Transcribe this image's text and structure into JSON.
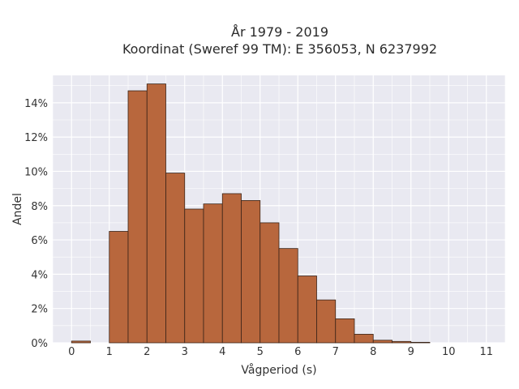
{
  "chart_data": {
    "type": "bar",
    "title_line1": "År 1979 - 2019",
    "title_line2": "Koordinat (Sweref 99 TM): E 356053, N 6237992",
    "xlabel": "Vågperiod (s)",
    "ylabel": "Andel",
    "bin_width": 0.5,
    "bins": [
      {
        "x0": 0.0,
        "x1": 0.5,
        "value": 0.1
      },
      {
        "x0": 0.5,
        "x1": 1.0,
        "value": 0.0
      },
      {
        "x0": 1.0,
        "x1": 1.5,
        "value": 6.5
      },
      {
        "x0": 1.5,
        "x1": 2.0,
        "value": 14.7
      },
      {
        "x0": 2.0,
        "x1": 2.5,
        "value": 15.1
      },
      {
        "x0": 2.5,
        "x1": 3.0,
        "value": 9.9
      },
      {
        "x0": 3.0,
        "x1": 3.5,
        "value": 7.8
      },
      {
        "x0": 3.5,
        "x1": 4.0,
        "value": 8.1
      },
      {
        "x0": 4.0,
        "x1": 4.5,
        "value": 8.7
      },
      {
        "x0": 4.5,
        "x1": 5.0,
        "value": 8.3
      },
      {
        "x0": 5.0,
        "x1": 5.5,
        "value": 7.0
      },
      {
        "x0": 5.5,
        "x1": 6.0,
        "value": 5.5
      },
      {
        "x0": 6.0,
        "x1": 6.5,
        "value": 3.9
      },
      {
        "x0": 6.5,
        "x1": 7.0,
        "value": 2.5
      },
      {
        "x0": 7.0,
        "x1": 7.5,
        "value": 1.4
      },
      {
        "x0": 7.5,
        "x1": 8.0,
        "value": 0.5
      },
      {
        "x0": 8.0,
        "x1": 8.5,
        "value": 0.15
      },
      {
        "x0": 8.5,
        "x1": 9.0,
        "value": 0.08
      },
      {
        "x0": 9.0,
        "x1": 9.5,
        "value": 0.03
      }
    ],
    "xlim": [
      -0.5,
      11.5
    ],
    "ylim": [
      0,
      15.6
    ],
    "xticks": [
      0,
      1,
      2,
      3,
      4,
      5,
      6,
      7,
      8,
      9,
      10,
      11
    ],
    "yticks": [
      0,
      2,
      4,
      6,
      8,
      10,
      12,
      14
    ],
    "ytick_suffix": "%",
    "grid": true,
    "colors": {
      "bar_fill": "#b8673d",
      "bar_edge": "#3a2418",
      "plot_background": "#e9e9f1",
      "grid": "#ffffff",
      "text": "#333333"
    }
  }
}
